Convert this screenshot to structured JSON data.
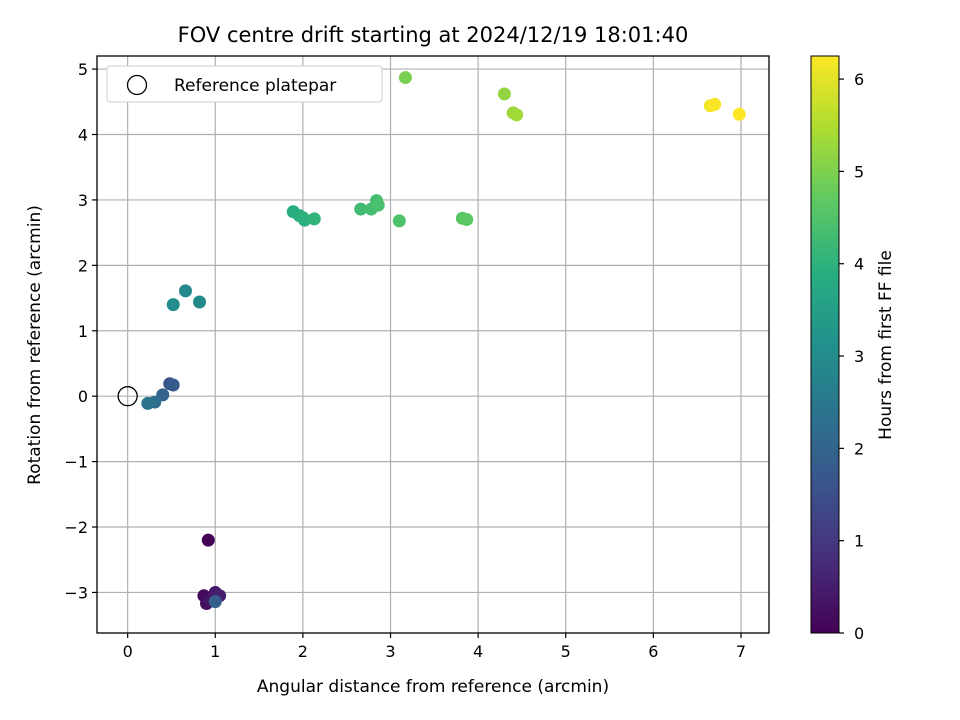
{
  "chart_data": {
    "type": "scatter",
    "title": "FOV centre drift starting at 2024/12/19 18:01:40",
    "xlabel": "Angular distance from reference (arcmin)",
    "ylabel": "Rotation from reference (arcmin)",
    "xlim": [
      -0.35,
      7.32
    ],
    "ylim": [
      -3.62,
      5.2
    ],
    "xticks": [
      0,
      1,
      2,
      3,
      4,
      5,
      6,
      7
    ],
    "xtick_labels": [
      "0",
      "1",
      "2",
      "3",
      "4",
      "5",
      "6",
      "7"
    ],
    "yticks": [
      -3,
      -2,
      -1,
      0,
      1,
      2,
      3,
      4,
      5
    ],
    "ytick_labels": [
      "−3",
      "−2",
      "−1",
      "0",
      "1",
      "2",
      "3",
      "4",
      "5"
    ],
    "grid": true,
    "legend": {
      "position": "top-left",
      "entries": [
        "Reference platepar"
      ]
    },
    "reference": {
      "x": 0,
      "y": 0,
      "marker": "open-circle"
    },
    "colorbar": {
      "label": "Hours from first FF file",
      "range": [
        0,
        6.25
      ],
      "ticks": [
        0,
        1,
        2,
        3,
        4,
        5,
        6
      ],
      "tick_labels": [
        "0",
        "1",
        "2",
        "3",
        "4",
        "5",
        "6"
      ],
      "colormap": "viridis"
    },
    "points": [
      {
        "x": 0.92,
        "y": -2.2,
        "hours": 0.05
      },
      {
        "x": 0.87,
        "y": -3.05,
        "hours": 0.15
      },
      {
        "x": 0.9,
        "y": -3.17,
        "hours": 0.25
      },
      {
        "x": 0.94,
        "y": -3.12,
        "hours": 0.35
      },
      {
        "x": 1.0,
        "y": -3.0,
        "hours": 0.45
      },
      {
        "x": 1.05,
        "y": -3.05,
        "hours": 0.55
      },
      {
        "x": 1.0,
        "y": -3.14,
        "hours": 1.9
      },
      {
        "x": 0.48,
        "y": 0.19,
        "hours": 1.6
      },
      {
        "x": 0.52,
        "y": 0.17,
        "hours": 1.75
      },
      {
        "x": 0.4,
        "y": 0.02,
        "hours": 2.0
      },
      {
        "x": 0.31,
        "y": -0.09,
        "hours": 2.25
      },
      {
        "x": 0.23,
        "y": -0.11,
        "hours": 2.4
      },
      {
        "x": 0.52,
        "y": 1.4,
        "hours": 3.0
      },
      {
        "x": 0.66,
        "y": 1.61,
        "hours": 2.9
      },
      {
        "x": 0.82,
        "y": 1.44,
        "hours": 2.95
      },
      {
        "x": 1.89,
        "y": 2.82,
        "hours": 3.85
      },
      {
        "x": 1.96,
        "y": 2.76,
        "hours": 3.9
      },
      {
        "x": 2.02,
        "y": 2.69,
        "hours": 3.95
      },
      {
        "x": 2.0,
        "y": 2.73,
        "hours": 4.0
      },
      {
        "x": 2.13,
        "y": 2.71,
        "hours": 4.05
      },
      {
        "x": 2.66,
        "y": 2.86,
        "hours": 4.25
      },
      {
        "x": 2.78,
        "y": 2.86,
        "hours": 4.3
      },
      {
        "x": 2.84,
        "y": 2.99,
        "hours": 4.35
      },
      {
        "x": 2.86,
        "y": 2.92,
        "hours": 4.4
      },
      {
        "x": 3.1,
        "y": 2.68,
        "hours": 4.45
      },
      {
        "x": 3.82,
        "y": 2.72,
        "hours": 4.6
      },
      {
        "x": 3.87,
        "y": 2.7,
        "hours": 4.65
      },
      {
        "x": 3.17,
        "y": 4.87,
        "hours": 4.95
      },
      {
        "x": 4.3,
        "y": 4.62,
        "hours": 5.2
      },
      {
        "x": 4.4,
        "y": 4.33,
        "hours": 5.3
      },
      {
        "x": 4.44,
        "y": 4.3,
        "hours": 5.35
      },
      {
        "x": 6.65,
        "y": 4.44,
        "hours": 6.15
      },
      {
        "x": 6.7,
        "y": 4.46,
        "hours": 6.2
      },
      {
        "x": 6.98,
        "y": 4.31,
        "hours": 6.25
      }
    ]
  }
}
